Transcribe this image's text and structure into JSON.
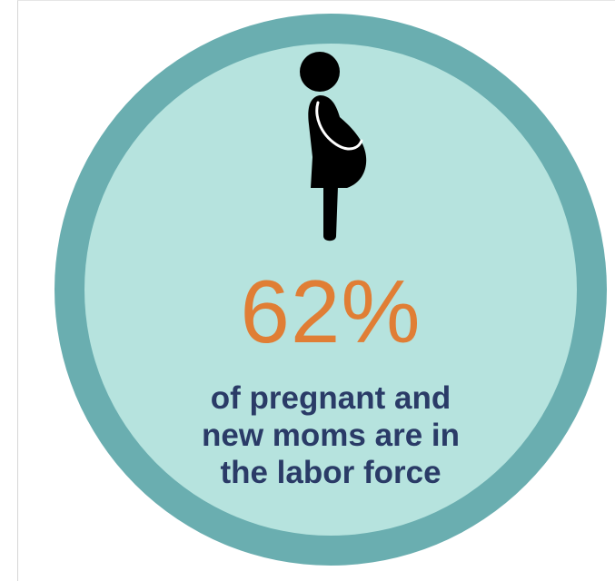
{
  "stat": {
    "value": "62%"
  },
  "caption": {
    "lines": [
      "of pregnant and",
      "new moms are in",
      "the labor force"
    ]
  },
  "icons": {
    "figure": "pregnant-woman-icon"
  },
  "colors": {
    "outer_ring": "#6aaeb0",
    "inner_disc": "#b6e3de",
    "stat": "#e07e35",
    "caption": "#2a3b67",
    "figure": "#000000"
  }
}
